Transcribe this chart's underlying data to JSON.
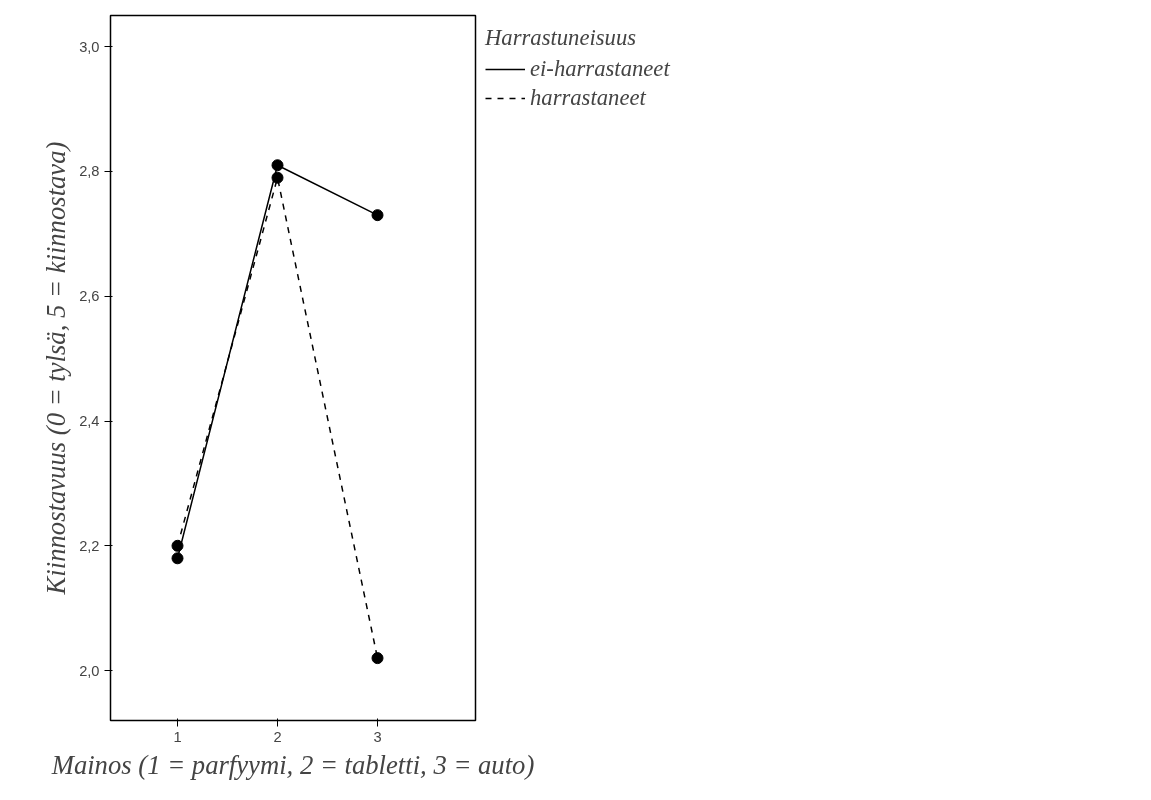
{
  "chart_data": {
    "type": "line",
    "xlabel": "Mainos (1 = parfyymi, 2 = tabletti, 3 = auto)",
    "ylabel": "Kiinnostavuus (0 = tylsä, 5 = kiinnostava)",
    "legend_title": "Harrastuneisuus",
    "legend": "top right",
    "grid": false,
    "marker": "circle",
    "x": [
      1,
      2,
      3
    ],
    "series": [
      {
        "name": "ei-harrastaneet",
        "color": "#000000",
        "line_style": "solid",
        "values": [
          2.18,
          2.81,
          2.73
        ]
      },
      {
        "name": "harrastaneet",
        "color": "#000000",
        "line_style": "dashed",
        "values": [
          2.2,
          2.79,
          2.02
        ]
      }
    ],
    "xlim": [
      0.33,
      3.98
    ],
    "ylim": [
      1.92,
      3.05
    ],
    "xticks": [
      1,
      2,
      3
    ],
    "yticks": [
      {
        "value": 2.0,
        "label": "2,0"
      },
      {
        "value": 2.2,
        "label": "2,2"
      },
      {
        "value": 2.4,
        "label": "2,4"
      },
      {
        "value": 2.6,
        "label": "2,6"
      },
      {
        "value": 2.8,
        "label": "2,8"
      },
      {
        "value": 3.0,
        "label": "3,0"
      }
    ]
  }
}
